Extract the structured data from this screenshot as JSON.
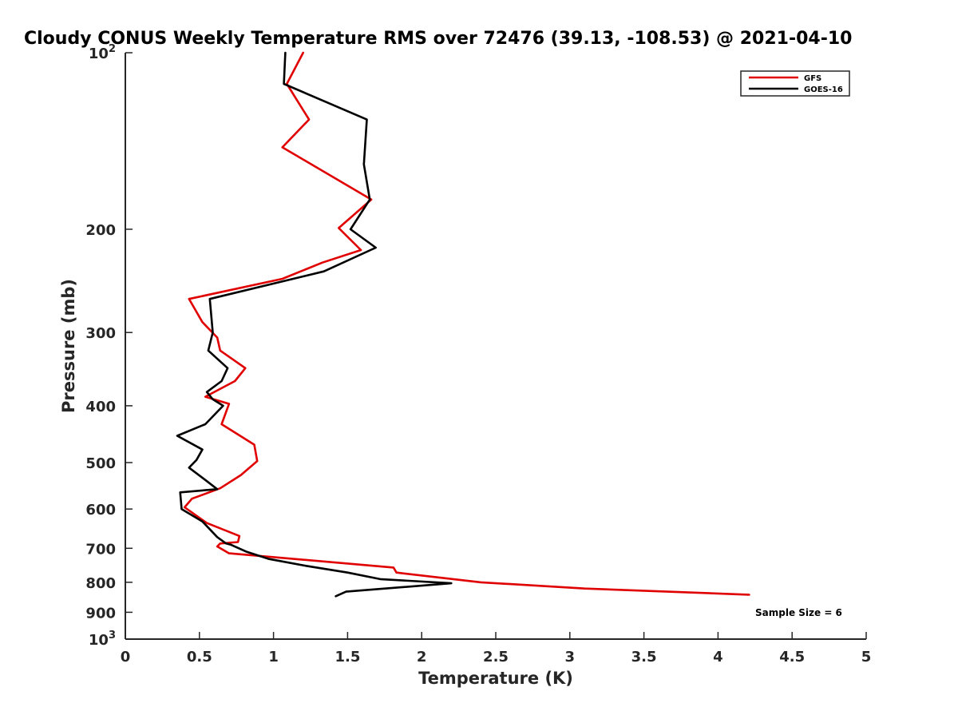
{
  "chart_data": {
    "type": "line",
    "title": "Cloudy CONUS Weekly Temperature RMS over 72476 (39.13, -108.53) @ 2021-04-10",
    "xlabel": "Temperature (K)",
    "ylabel": "Pressure (mb)",
    "xlim": [
      0,
      5
    ],
    "ylim": [
      100,
      1000
    ],
    "y_scale": "log",
    "y_reversed": true,
    "x_ticks": [
      0,
      0.5,
      1,
      1.5,
      2,
      2.5,
      3,
      3.5,
      4,
      4.5,
      5
    ],
    "x_tick_labels": [
      "0",
      "0.5",
      "1",
      "1.5",
      "2",
      "2.5",
      "3",
      "3.5",
      "4",
      "4.5",
      "5"
    ],
    "y_ticks": [
      100,
      200,
      300,
      400,
      500,
      600,
      700,
      800,
      900,
      1000
    ],
    "y_tick_labels": [
      {
        "base": "10",
        "exp": "2"
      },
      {
        "base": "200",
        "exp": ""
      },
      {
        "base": "300",
        "exp": ""
      },
      {
        "base": "400",
        "exp": ""
      },
      {
        "base": "500",
        "exp": ""
      },
      {
        "base": "600",
        "exp": ""
      },
      {
        "base": "700",
        "exp": ""
      },
      {
        "base": "800",
        "exp": ""
      },
      {
        "base": "900",
        "exp": ""
      },
      {
        "base": "10",
        "exp": "3"
      }
    ],
    "grid": false,
    "legend_position": "top-right",
    "annotation": "Sample Size = 6",
    "series": [
      {
        "name": "GFS",
        "color": "#e00000",
        "x": [
          1.2,
          1.09,
          1.24,
          1.06,
          1.66,
          1.44,
          1.59,
          1.33,
          1.06,
          0.43,
          0.52,
          0.62,
          0.64,
          0.81,
          0.74,
          0.54,
          0.7,
          0.65,
          0.87,
          0.89,
          0.78,
          0.64,
          0.45,
          0.4,
          0.55,
          0.77,
          0.76,
          0.64,
          0.62,
          0.7,
          1.81,
          1.83,
          2.4,
          3.1,
          4.21
        ],
        "y": [
          100,
          113,
          130,
          145,
          178,
          199,
          217,
          228,
          243,
          263,
          288,
          306,
          322,
          345,
          363,
          386,
          397,
          430,
          466,
          497,
          525,
          553,
          576,
          596,
          634,
          667,
          683,
          687,
          695,
          714,
          755,
          770,
          800,
          820,
          840
        ]
      },
      {
        "name": "GOES-16",
        "color": "#000000",
        "x": [
          1.08,
          1.07,
          1.63,
          1.61,
          1.65,
          1.52,
          1.69,
          1.34,
          0.57,
          0.59,
          0.56,
          0.69,
          0.65,
          0.55,
          0.59,
          0.66,
          0.54,
          0.35,
          0.52,
          0.48,
          0.43,
          0.53,
          0.62,
          0.37,
          0.38,
          0.52,
          0.62,
          0.68,
          0.71,
          0.82,
          0.97,
          1.22,
          1.5,
          1.72,
          2.2,
          1.49,
          1.42
        ],
        "y": [
          100,
          113,
          130,
          155,
          178,
          200,
          215,
          236,
          263,
          300,
          322,
          345,
          363,
          379,
          390,
          400,
          430,
          450,
          475,
          495,
          510,
          533,
          555,
          562,
          600,
          630,
          670,
          687,
          690,
          710,
          730,
          750,
          770,
          790,
          803,
          830,
          845
        ]
      }
    ]
  }
}
